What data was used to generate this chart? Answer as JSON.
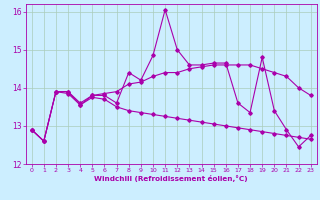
{
  "xlabel": "Windchill (Refroidissement éolien,°C)",
  "background_color": "#cceeff",
  "grid_color": "#aaccbb",
  "line_color": "#aa00aa",
  "xlim": [
    -0.5,
    23.5
  ],
  "ylim": [
    12,
    16.2
  ],
  "yticks": [
    12,
    13,
    14,
    15,
    16
  ],
  "xticks": [
    0,
    1,
    2,
    3,
    4,
    5,
    6,
    7,
    8,
    9,
    10,
    11,
    12,
    13,
    14,
    15,
    16,
    17,
    18,
    19,
    20,
    21,
    22,
    23
  ],
  "series": [
    [
      12.9,
      12.6,
      13.9,
      13.9,
      13.6,
      13.8,
      13.8,
      13.6,
      14.4,
      14.2,
      14.85,
      16.05,
      15.0,
      14.6,
      14.6,
      14.65,
      14.65,
      13.6,
      13.35,
      14.8,
      13.4,
      12.9,
      12.45,
      12.75
    ],
    [
      12.9,
      12.6,
      13.9,
      13.85,
      13.55,
      13.8,
      13.85,
      13.9,
      14.1,
      14.15,
      14.3,
      14.4,
      14.4,
      14.5,
      14.55,
      14.6,
      14.6,
      14.6,
      14.6,
      14.5,
      14.4,
      14.3,
      14.0,
      13.8
    ],
    [
      12.9,
      12.6,
      13.9,
      13.9,
      13.55,
      13.75,
      13.7,
      13.5,
      13.4,
      13.35,
      13.3,
      13.25,
      13.2,
      13.15,
      13.1,
      13.05,
      13.0,
      12.95,
      12.9,
      12.85,
      12.8,
      12.75,
      12.7,
      12.65
    ]
  ]
}
